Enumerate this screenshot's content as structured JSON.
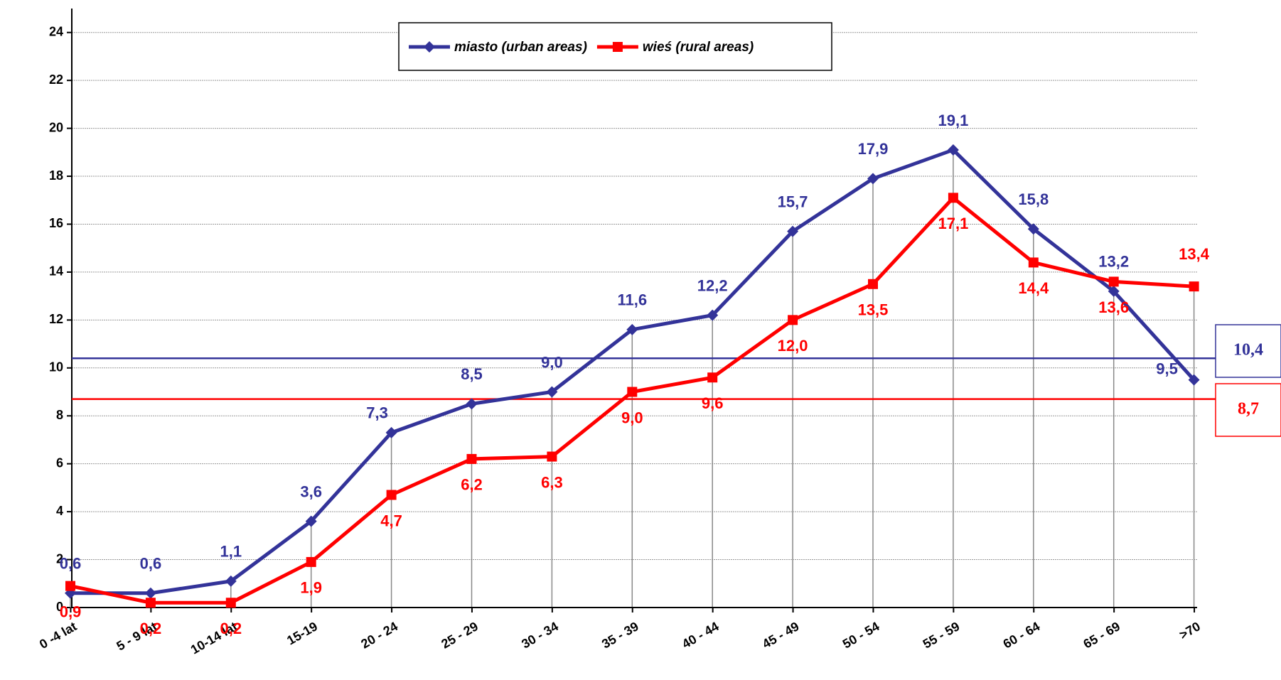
{
  "chart_data": {
    "type": "line",
    "categories": [
      "0 -4 lat",
      "5 - 9 lat",
      "10-14 lat",
      "15-19",
      "20 - 24",
      "25 - 29",
      "30 - 34",
      "35 - 39",
      "40 - 44",
      "45 - 49",
      "50 - 54",
      "55 - 59",
      "60 - 64",
      "65 - 69",
      ">70"
    ],
    "series": [
      {
        "name": "miasto (urban areas)",
        "color": "#333399",
        "marker": "diamond",
        "values": [
          0.6,
          0.6,
          1.1,
          3.6,
          7.3,
          8.5,
          9.0,
          11.6,
          12.2,
          15.7,
          17.9,
          19.1,
          15.8,
          13.2,
          9.5
        ],
        "value_labels": [
          "0,6",
          "0,6",
          "1,1",
          "3,6",
          "7,3",
          "8,5",
          "9,0",
          "11,6",
          "12,2",
          "15,7",
          "17,9",
          "19,1",
          "15,8",
          "13,2",
          "9,5"
        ]
      },
      {
        "name": "wieś (rural areas)",
        "color": "#ff0000",
        "marker": "square",
        "values": [
          0.9,
          0.2,
          0.2,
          1.9,
          4.7,
          6.2,
          6.3,
          9.0,
          9.6,
          12.0,
          13.5,
          17.1,
          14.4,
          13.6,
          13.4
        ],
        "value_labels": [
          "0,9",
          "0,2",
          "0,2",
          "1,9",
          "4,7",
          "6,2",
          "6,3",
          "9,0",
          "9,6",
          "12,0",
          "13,5",
          "17,1",
          "14,4",
          "13,6",
          "13,4"
        ]
      }
    ],
    "reference_lines": [
      {
        "value": 10.4,
        "label": "10,4",
        "color": "#333399"
      },
      {
        "value": 8.7,
        "label": "8,7",
        "color": "#ff0000"
      }
    ],
    "ylim": [
      0,
      25
    ],
    "yticks": [
      0,
      2,
      4,
      6,
      8,
      10,
      12,
      14,
      16,
      18,
      20,
      22,
      24
    ],
    "grid": true
  }
}
